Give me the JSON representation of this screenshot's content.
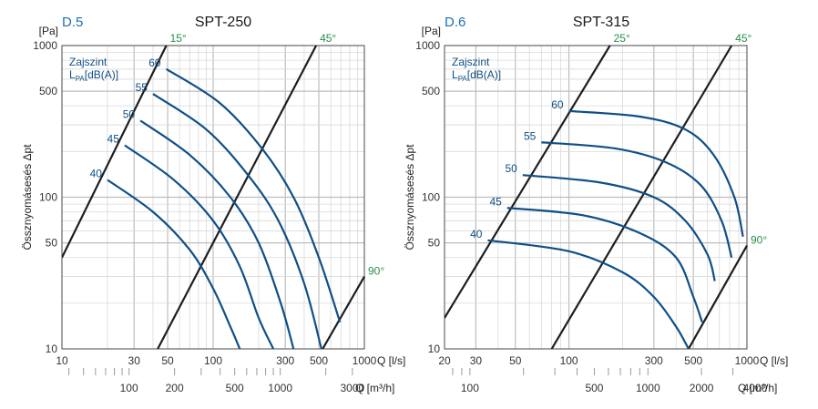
{
  "chart_data": [
    {
      "type": "line",
      "code": "D.5",
      "title": "SPT-250",
      "ylabel": "Össznyomásesés Δpt",
      "yunit": "[Pa]",
      "xlabel": "Q [l/s]",
      "x2label": "Q [m³/h]",
      "noise_legend_line1": "Zajszint",
      "noise_legend_line2": "L",
      "noise_legend_sub": "PA",
      "noise_legend_rest": "[dB(A)]",
      "log_x": true,
      "log_y": true,
      "xlim": [
        10,
        1000
      ],
      "ylim": [
        10,
        1000
      ],
      "yticks": [
        10,
        50,
        100,
        500,
        1000
      ],
      "xticks": [
        10,
        30,
        50,
        100,
        300,
        500,
        1000
      ],
      "x2ticks": [
        100,
        200,
        500,
        1000,
        3000
      ],
      "grid": true,
      "series": [
        {
          "name": "40",
          "x": [
            20,
            40,
            70,
            100,
            130,
            150
          ],
          "y": [
            130,
            80,
            45,
            25,
            14,
            10
          ]
        },
        {
          "name": "45",
          "x": [
            26,
            55,
            100,
            150,
            200,
            250
          ],
          "y": [
            220,
            130,
            70,
            35,
            16,
            10
          ]
        },
        {
          "name": "50",
          "x": [
            33,
            70,
            130,
            200,
            280,
            340
          ],
          "y": [
            320,
            190,
            100,
            50,
            20,
            10
          ]
        },
        {
          "name": "55",
          "x": [
            40,
            90,
            170,
            270,
            400,
            520
          ],
          "y": [
            480,
            280,
            140,
            70,
            27,
            10
          ]
        },
        {
          "name": "60",
          "x": [
            49,
            110,
            210,
            340,
            500,
            690
          ],
          "y": [
            700,
            420,
            210,
            100,
            40,
            15
          ]
        }
      ],
      "angle_lines": [
        {
          "name": "15°",
          "x": [
            10,
            49
          ],
          "y": [
            40,
            1000
          ]
        },
        {
          "name": "45°",
          "x": [
            43,
            480
          ],
          "y": [
            10,
            1000
          ]
        },
        {
          "name": "90°",
          "x": [
            530,
            1000
          ],
          "y": [
            10,
            30
          ]
        }
      ]
    },
    {
      "type": "line",
      "code": "D.6",
      "title": "SPT-315",
      "ylabel": "Össznyomásesés Δpt",
      "yunit": "[Pa]",
      "xlabel": "Q [l/s]",
      "x2label": "Q [m³/h]",
      "noise_legend_line1": "Zajszint",
      "noise_legend_line2": "L",
      "noise_legend_sub": "PA",
      "noise_legend_rest": "[dB(A)]",
      "log_x": true,
      "log_y": true,
      "xlim": [
        20,
        1000
      ],
      "ylim": [
        10,
        1000
      ],
      "yticks": [
        10,
        50,
        100,
        500,
        1000
      ],
      "xticks": [
        20,
        30,
        50,
        100,
        300,
        500,
        1000
      ],
      "x2ticks": [
        100,
        500,
        1000,
        2000,
        4000
      ],
      "grid": true,
      "series": [
        {
          "name": "40",
          "x": [
            35,
            100,
            200,
            300,
            400,
            470
          ],
          "y": [
            52,
            44,
            32,
            22,
            14,
            10
          ]
        },
        {
          "name": "45",
          "x": [
            45,
            120,
            250,
            400,
            500,
            560
          ],
          "y": [
            85,
            76,
            58,
            40,
            22,
            15
          ]
        },
        {
          "name": "50",
          "x": [
            55,
            150,
            300,
            450,
            600,
            660
          ],
          "y": [
            140,
            125,
            100,
            70,
            42,
            28
          ]
        },
        {
          "name": "55",
          "x": [
            70,
            180,
            350,
            550,
            720,
            820
          ],
          "y": [
            230,
            210,
            170,
            120,
            70,
            40
          ]
        },
        {
          "name": "60",
          "x": [
            100,
            250,
            450,
            650,
            850,
            950
          ],
          "y": [
            370,
            340,
            280,
            190,
            100,
            55
          ]
        }
      ],
      "angle_lines": [
        {
          "name": "25°",
          "x": [
            20,
            170
          ],
          "y": [
            16,
            1000
          ]
        },
        {
          "name": "45°",
          "x": [
            80,
            820
          ],
          "y": [
            10,
            1000
          ]
        },
        {
          "name": "90°",
          "x": [
            470,
            1000
          ],
          "y": [
            10,
            48
          ]
        }
      ]
    }
  ]
}
